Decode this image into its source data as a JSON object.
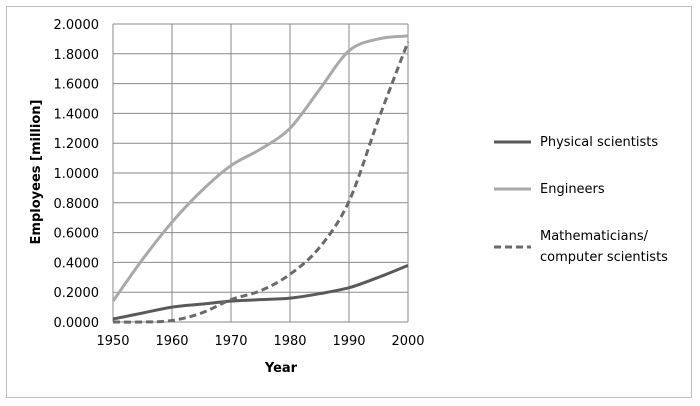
{
  "chart_data": {
    "type": "line",
    "xlabel": "Year",
    "ylabel": "Employees [million]",
    "xlim": [
      1950,
      2000
    ],
    "ylim": [
      0,
      2.0
    ],
    "x_ticks": [
      "1950",
      "1960",
      "1970",
      "1980",
      "1990",
      "2000"
    ],
    "y_ticks": [
      "0.0000",
      "0.2000",
      "0.4000",
      "0.6000",
      "0.8000",
      "1.0000",
      "1.2000",
      "1.4000",
      "1.6000",
      "1.8000",
      "2.0000"
    ],
    "grid": true,
    "legend_position": "right",
    "series": [
      {
        "name": "Physical scientists",
        "color": "#5a5a5a",
        "dash": "solid",
        "x": [
          1950,
          1955,
          1960,
          1965,
          1970,
          1975,
          1980,
          1985,
          1990,
          1995,
          2000
        ],
        "y": [
          0.02,
          0.06,
          0.1,
          0.12,
          0.14,
          0.15,
          0.16,
          0.19,
          0.23,
          0.3,
          0.38
        ]
      },
      {
        "name": "Engineers",
        "color": "#a9a9a9",
        "dash": "solid",
        "x": [
          1950,
          1955,
          1960,
          1965,
          1970,
          1975,
          1980,
          1985,
          1990,
          1995,
          2000
        ],
        "y": [
          0.14,
          0.42,
          0.67,
          0.88,
          1.05,
          1.16,
          1.3,
          1.56,
          1.82,
          1.9,
          1.92
        ]
      },
      {
        "name": "Mathematicians/ computer scientists",
        "name_lines": [
          "Mathematicians/",
          "computer scientists"
        ],
        "color": "#6a6a6a",
        "dash": "dashed",
        "x": [
          1950,
          1955,
          1960,
          1965,
          1970,
          1975,
          1980,
          1985,
          1990,
          1995,
          2000
        ],
        "y": [
          0.0,
          0.0,
          0.01,
          0.06,
          0.15,
          0.21,
          0.32,
          0.5,
          0.81,
          1.36,
          1.88
        ]
      }
    ]
  }
}
